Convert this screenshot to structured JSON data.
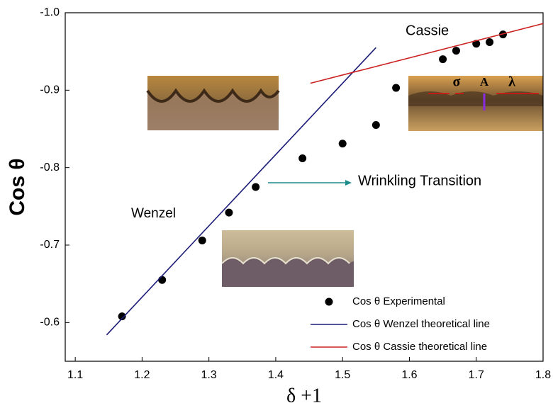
{
  "chart_data": {
    "type": "scatter",
    "x_label": "δ +1",
    "y_label": "Cos θ",
    "xlim": [
      1.085,
      1.8
    ],
    "ylim": [
      -0.55,
      -1.0
    ],
    "xticks": [
      1.1,
      1.2,
      1.3,
      1.4,
      1.5,
      1.6,
      1.7,
      1.8
    ],
    "yticks": [
      -0.6,
      -0.7,
      -0.8,
      -0.9,
      {
        "value": -1.0,
        "label": "-1.0"
      }
    ],
    "series": [
      {
        "name": "Cos θ  Experimental",
        "color": "#000000",
        "mode": "markers",
        "x": [
          1.17,
          1.23,
          1.29,
          1.33,
          1.37,
          1.44,
          1.5,
          1.55,
          1.58,
          1.65,
          1.67,
          1.7,
          1.72,
          1.74
        ],
        "values": [
          -0.608,
          -0.655,
          -0.706,
          -0.742,
          -0.775,
          -0.812,
          -0.831,
          -0.855,
          -0.903,
          -0.94,
          -0.951,
          -0.96,
          -0.962,
          -0.972
        ]
      },
      {
        "name": "Cos θ Wenzel theoretical line",
        "color": "#1c1c78",
        "mode": "line",
        "x": [
          1.147,
          1.55
        ],
        "values": [
          -0.584,
          -0.955
        ]
      },
      {
        "name": "Cos θ Cassie theoretical line",
        "color": "#cc2222",
        "mode": "line",
        "x": [
          1.452,
          1.8
        ],
        "values": [
          -0.909,
          -0.986
        ]
      }
    ],
    "annotations": [
      {
        "text": "Cassie",
        "color": "#cc2222"
      },
      {
        "text": "Wenzel",
        "color": "#1c1c78"
      },
      {
        "text": "Wrinkling Transition",
        "color": "#1f8c8c"
      },
      {
        "text": "σ",
        "color": "#dd1111"
      },
      {
        "text": "A",
        "color": "#1c1c9a"
      },
      {
        "text": "λ",
        "color": "#dd1111"
      }
    ]
  }
}
